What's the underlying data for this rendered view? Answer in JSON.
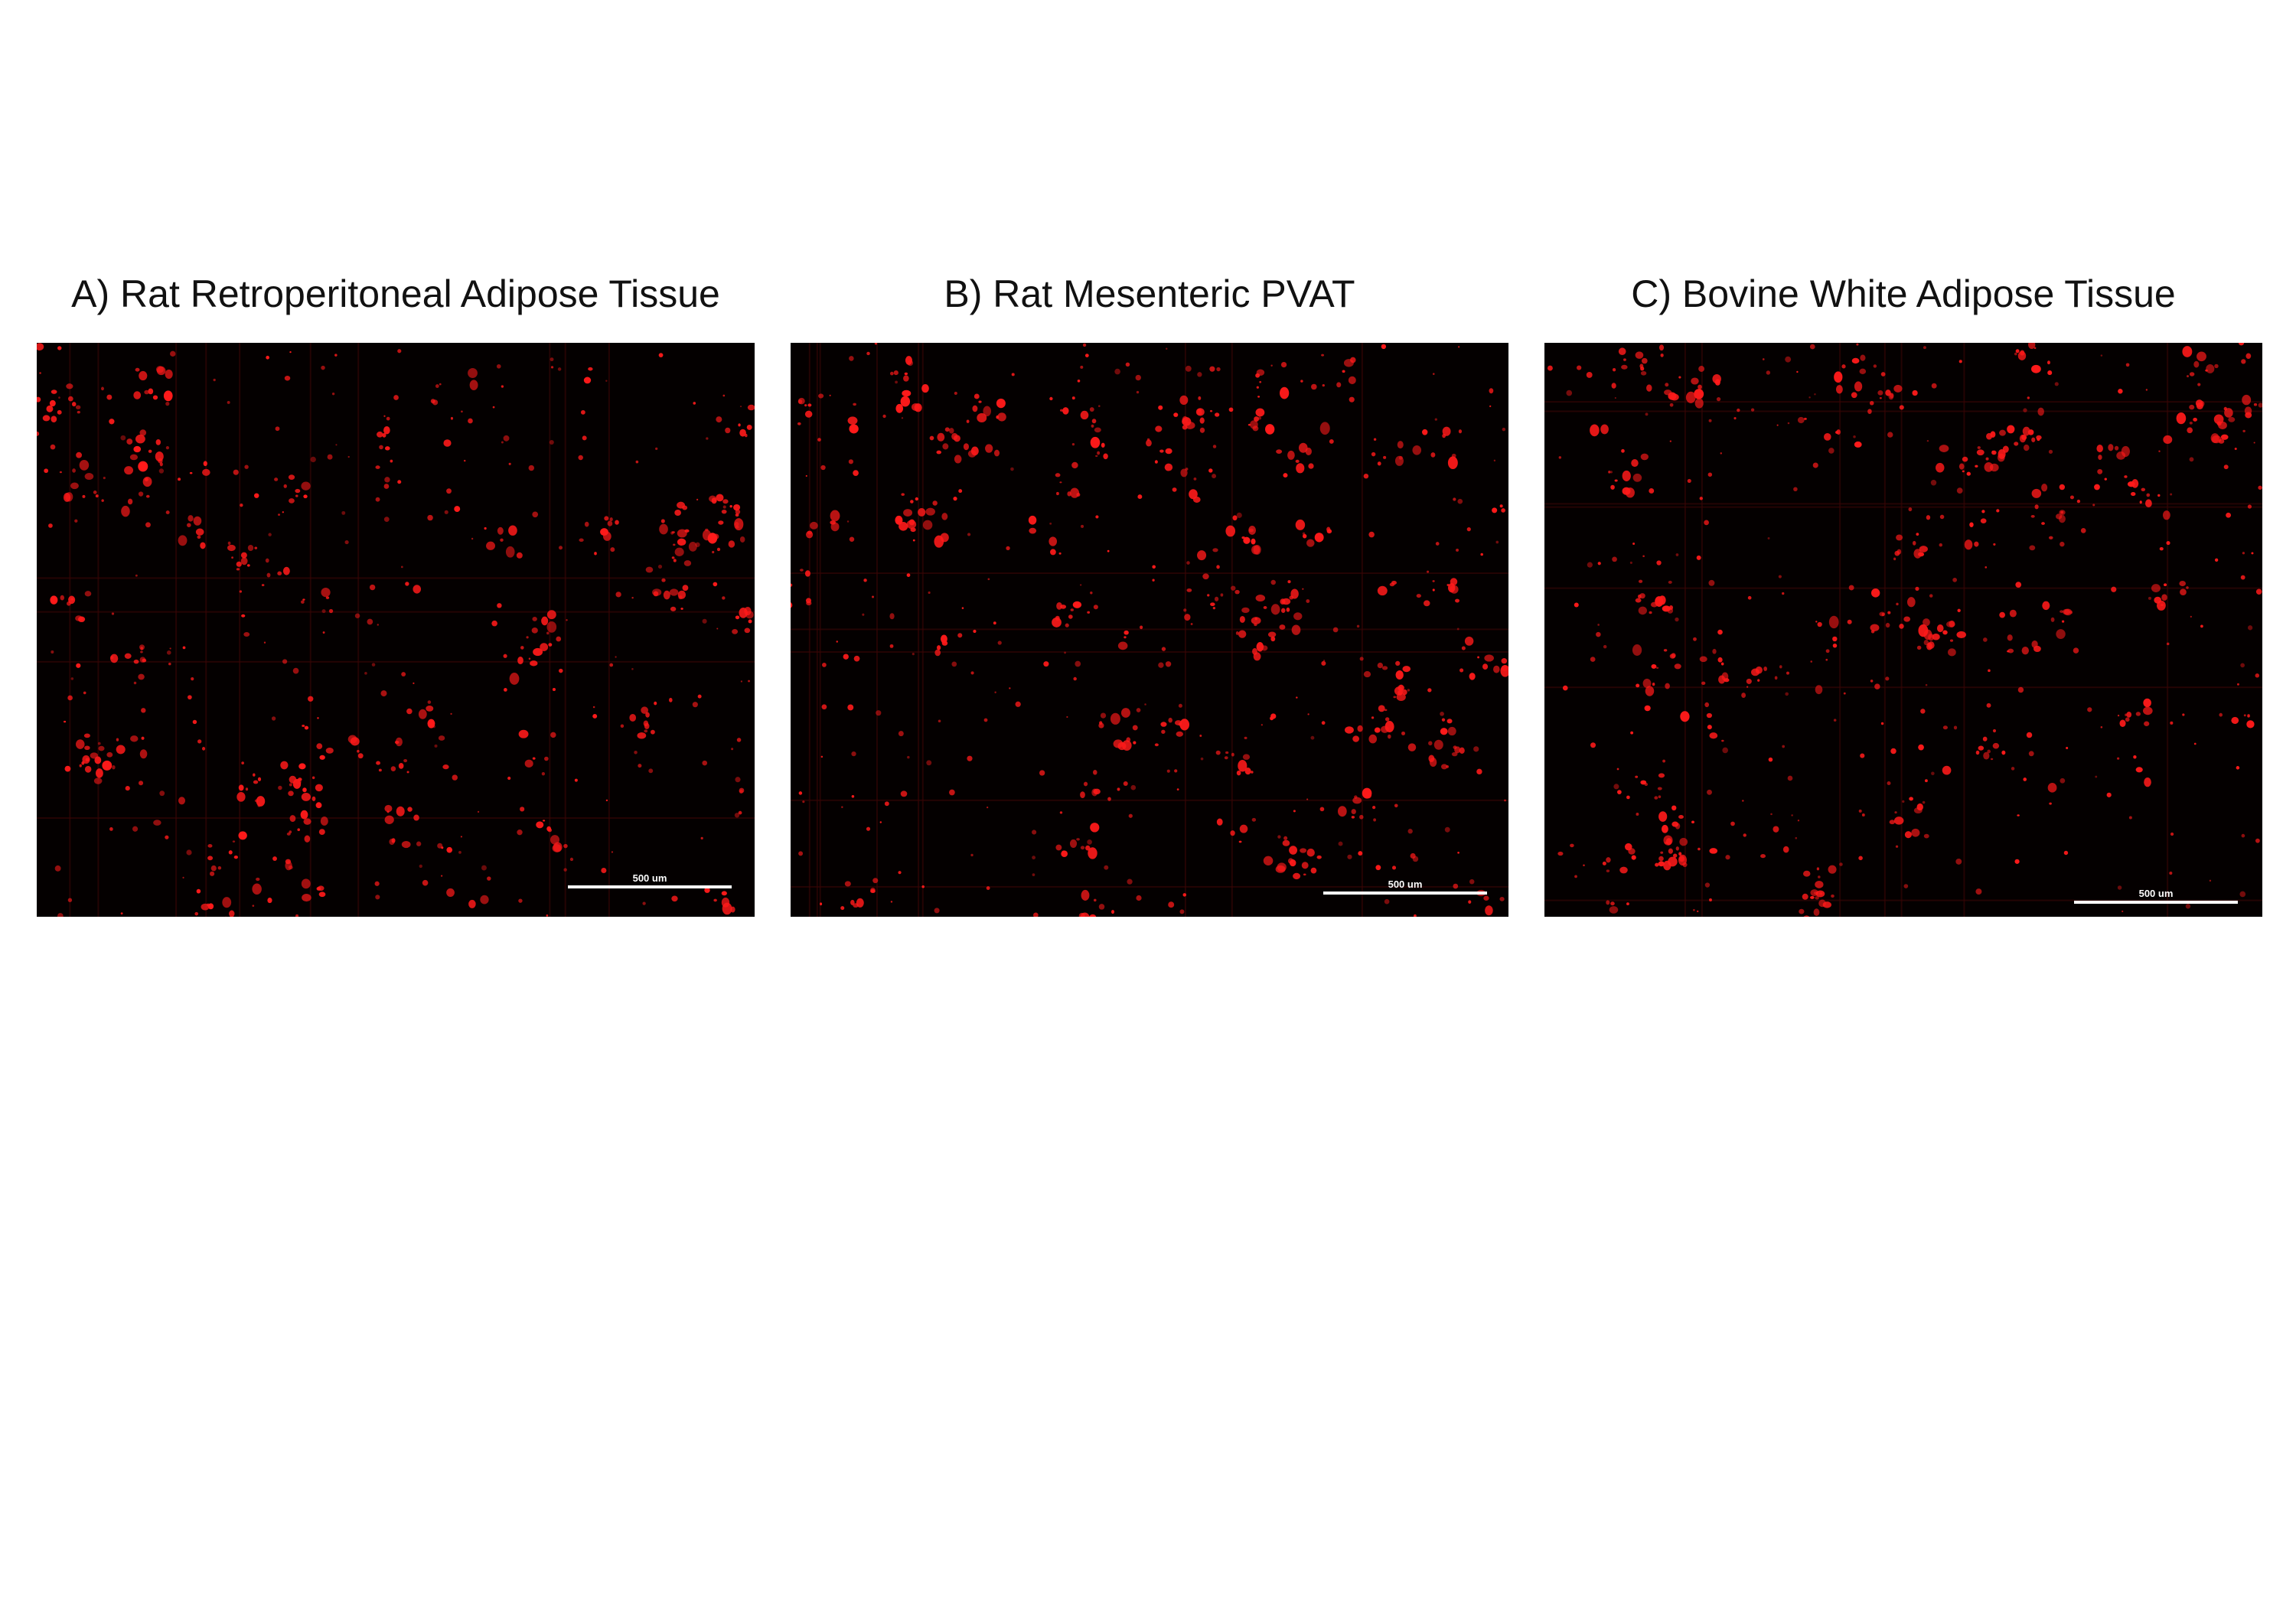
{
  "panels": [
    {
      "title": "A) Rat Retroperitoneal Adipose Tissue",
      "scale_bar_label": "500 um",
      "marker_color": "#ff1a1a"
    },
    {
      "title": "B) Rat Mesenteric PVAT",
      "scale_bar_label": "500 um",
      "marker_color": "#ff1a1a"
    },
    {
      "title": "C) Bovine White Adipose Tissue",
      "scale_bar_label": "500 um",
      "marker_color": "#ff1a1a"
    }
  ]
}
